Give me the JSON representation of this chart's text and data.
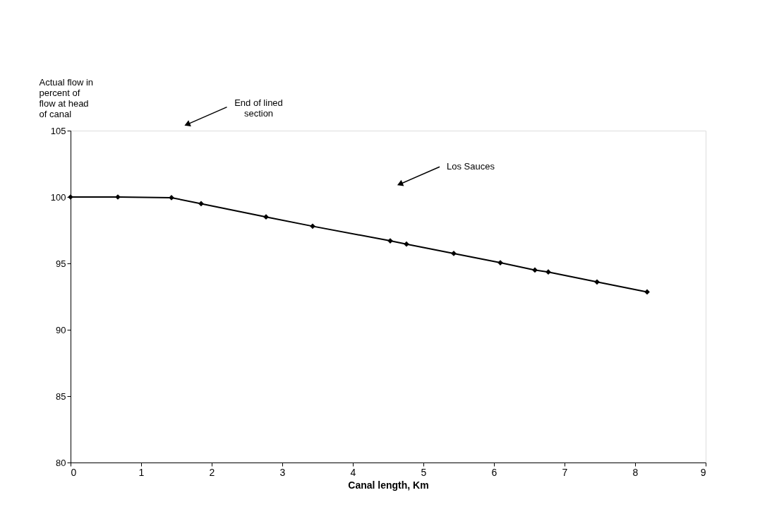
{
  "chart_data": {
    "type": "line",
    "xlabel": "Canal length, Km",
    "ylabel": "Actual flow in percent of flow at head of canal",
    "x": [
      0,
      0.67,
      1.43,
      1.85,
      2.77,
      3.43,
      4.53,
      4.76,
      5.43,
      6.09,
      6.58,
      6.77,
      7.46,
      8.17
    ],
    "series": [
      {
        "color": "#000000",
        "values": [
          100,
          100,
          99.95,
          99.5,
          98.5,
          97.8,
          96.7,
          96.45,
          95.75,
          95.05,
          94.5,
          94.35,
          93.6,
          92.85
        ]
      }
    ],
    "xlim": [
      0,
      9
    ],
    "xticks": [
      0,
      1,
      2,
      3,
      4,
      5,
      6,
      7,
      8,
      9
    ],
    "ylim": [
      80,
      105
    ],
    "yticks": [
      80,
      85,
      90,
      95,
      100,
      105
    ],
    "annotations": [
      "End of lined section",
      "Los Sauces"
    ],
    "grid": false,
    "marker": "diamond",
    "line_style": "solid"
  }
}
